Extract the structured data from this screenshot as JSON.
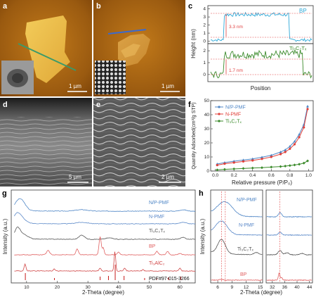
{
  "panels": {
    "a": {
      "label": "a",
      "scale_bar": "1 µm"
    },
    "b": {
      "label": "b",
      "scale_bar": "1 µm"
    },
    "c": {
      "label": "c",
      "ylabel": "Height (nm)",
      "xlabel": "Position",
      "top_legend": "BP",
      "top_annotation": "3.3 nm",
      "bottom_legend": "Ti₃C₂Tₓ",
      "bottom_annotation": "1.7 nm"
    },
    "d": {
      "label": "d",
      "scale_bar": "5 µm"
    },
    "e": {
      "label": "e",
      "scale_bar": "2 µm"
    },
    "f": {
      "label": "f",
      "ylabel": "Quantity Adsorbed(cm³/g STP)",
      "xlabel": "Relative pressure (P/P₀)"
    },
    "g": {
      "label": "g",
      "ylabel": "Intensity (a.u.)",
      "xlabel": "2-Theta (degree)",
      "pdf_label": "PDF#97-015-3266"
    },
    "h": {
      "label": "h",
      "ylabel": "Intensity (a.u.)",
      "xlabel": "2-Theta (degree)"
    }
  },
  "colors": {
    "nppmf": "#4f86c6",
    "npmf": "#5a88c8",
    "ti3c2": "#555555",
    "bp": "#e06060",
    "ti3alc2": "#d04545",
    "pdf": "#c00000",
    "npmf_red": "#e0403a",
    "green": "#3a8a2a",
    "cyan": "#2ca8d8"
  },
  "chart_data": [
    {
      "panel": "c-top",
      "type": "line",
      "series": [
        {
          "name": "BP"
        }
      ],
      "yticks": [
        0,
        1,
        2,
        3,
        4
      ],
      "ylim": [
        -0.3,
        4.4
      ],
      "step_height_nm": 3.3
    },
    {
      "panel": "c-bottom",
      "type": "line",
      "series": [
        {
          "name": "Ti₃C₂Tₓ"
        }
      ],
      "yticks": [
        0,
        1,
        2
      ],
      "ylim": [
        -0.6,
        2.6
      ],
      "step_height_nm": 1.7
    },
    {
      "panel": "f",
      "type": "line",
      "xticks": [
        0.0,
        0.2,
        0.4,
        0.6,
        0.8,
        1.0
      ],
      "xlim": [
        -0.05,
        1.05
      ],
      "yticks": [
        0,
        10,
        20,
        30,
        40,
        50
      ],
      "ylim": [
        0,
        50
      ],
      "series": [
        {
          "name": "N/P-PMF",
          "x": [
            0.02,
            0.1,
            0.2,
            0.3,
            0.4,
            0.5,
            0.6,
            0.7,
            0.75,
            0.8,
            0.85,
            0.9,
            0.95,
            0.99
          ],
          "y": [
            5,
            6,
            7,
            7.8,
            8.6,
            9.8,
            11.2,
            13.5,
            15,
            17.5,
            21,
            26,
            33,
            46
          ]
        },
        {
          "name": "N-PMF",
          "x": [
            0.02,
            0.1,
            0.2,
            0.3,
            0.4,
            0.5,
            0.6,
            0.7,
            0.75,
            0.8,
            0.85,
            0.9,
            0.95,
            0.99
          ],
          "y": [
            4.2,
            5.2,
            6,
            6.8,
            7.5,
            8.6,
            10,
            12,
            13.5,
            15.8,
            19,
            24,
            31,
            44
          ]
        },
        {
          "name": "Ti₃C₂Tₓ",
          "x": [
            0.02,
            0.1,
            0.2,
            0.3,
            0.4,
            0.5,
            0.6,
            0.7,
            0.75,
            0.8,
            0.85,
            0.9,
            0.95,
            0.99
          ],
          "y": [
            0.8,
            1.2,
            1.5,
            1.8,
            2.1,
            2.4,
            2.8,
            3.2,
            3.5,
            3.9,
            4.3,
            4.8,
            5.6,
            7.2
          ]
        }
      ]
    },
    {
      "panel": "g",
      "type": "line",
      "xticks": [
        10,
        20,
        30,
        40,
        50,
        60
      ],
      "xlim": [
        5,
        65
      ],
      "series": [
        {
          "name": "N/P-PMF"
        },
        {
          "name": "N-PMF"
        },
        {
          "name": "Ti₃C₂Tₓ"
        },
        {
          "name": "BP"
        },
        {
          "name": "Ti₃AlC₂"
        },
        {
          "name": "PDF#97-015-3266"
        }
      ]
    },
    {
      "panel": "h",
      "type": "line",
      "xticks_left": [
        6,
        9,
        12,
        15
      ],
      "xticks_right": [
        32,
        36,
        40,
        44
      ],
      "series": [
        {
          "name": "N/P-PMF"
        },
        {
          "name": "N-PMF"
        },
        {
          "name": "Ti₃C₂Tₓ"
        },
        {
          "name": "BP"
        }
      ]
    }
  ]
}
